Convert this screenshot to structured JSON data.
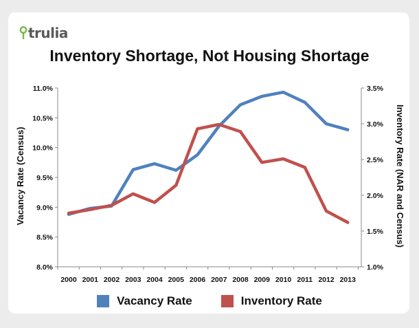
{
  "brand": {
    "name": "trulia",
    "accent": "#73bc45"
  },
  "chart_data": {
    "type": "line",
    "title": "Inventory Shortage, Not Housing Shortage",
    "categories": [
      "2000",
      "2001",
      "2002",
      "2003",
      "2004",
      "2005",
      "2006",
      "2007",
      "2008",
      "2009",
      "2010",
      "2011",
      "2012",
      "2013"
    ],
    "ylabel": "Vacancy Rate (Census)",
    "y2label": "Inventory Rate (NAR and Census)",
    "ylim": [
      8.0,
      11.0
    ],
    "y2lim": [
      1.0,
      3.5
    ],
    "y_ticks": [
      "8.0%",
      "8.5%",
      "9.0%",
      "9.5%",
      "10.0%",
      "10.5%",
      "11.0%"
    ],
    "y2_ticks": [
      "1.0%",
      "1.5%",
      "2.0%",
      "2.5%",
      "3.0%",
      "3.5%"
    ],
    "series": [
      {
        "name": "Vacancy Rate",
        "axis": "left",
        "color": "#4f81bd",
        "values": [
          8.88,
          8.98,
          9.02,
          9.63,
          9.73,
          9.62,
          9.88,
          10.36,
          10.72,
          10.86,
          10.93,
          10.76,
          10.4,
          10.3
        ]
      },
      {
        "name": "Inventory Rate",
        "axis": "right",
        "color": "#c0504d",
        "values": [
          1.75,
          1.8,
          1.86,
          2.02,
          1.9,
          2.14,
          2.93,
          2.99,
          2.89,
          2.46,
          2.51,
          2.39,
          1.78,
          1.62
        ]
      }
    ],
    "legend": "bottom"
  }
}
